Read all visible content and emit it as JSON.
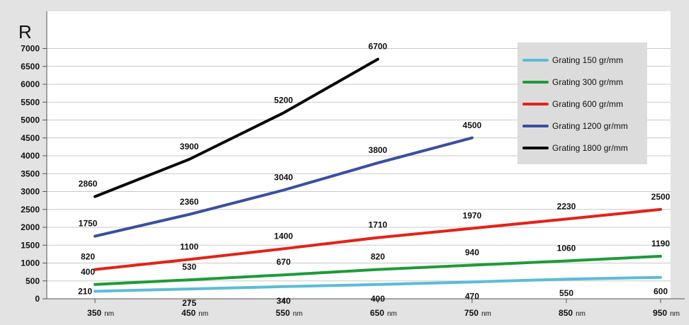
{
  "chart_data": {
    "type": "line",
    "ylabel": "R",
    "ylim": [
      0,
      8000
    ],
    "yticks": [
      0,
      500,
      1000,
      1500,
      2000,
      2500,
      3000,
      3500,
      4000,
      4500,
      5000,
      5500,
      6000,
      6500,
      7000
    ],
    "x": [
      350,
      450,
      550,
      650,
      750,
      850,
      950
    ],
    "xtick_labels": [
      "350",
      "450",
      "550",
      "650",
      "750",
      "850",
      "950"
    ],
    "x_unit": "nm",
    "grid": true,
    "legend_position": "top-right",
    "series": [
      {
        "name": "Grating 150 gr/mm",
        "color": "#5bbcd6",
        "x": [
          350,
          450,
          550,
          650,
          750,
          850,
          950
        ],
        "values": [
          210,
          275,
          340,
          400,
          470,
          550,
          600
        ]
      },
      {
        "name": "Grating 300 gr/mm",
        "color": "#1e9a3a",
        "x": [
          350,
          450,
          550,
          650,
          750,
          850,
          950
        ],
        "values": [
          400,
          530,
          670,
          820,
          940,
          1060,
          1190
        ]
      },
      {
        "name": "Grating 600 gr/mm",
        "color": "#e2231a",
        "x": [
          350,
          450,
          550,
          650,
          750,
          850,
          950
        ],
        "values": [
          820,
          1100,
          1400,
          1710,
          1970,
          2230,
          2500
        ]
      },
      {
        "name": "Grating 1200 gr/mm",
        "color": "#3b4ea0",
        "x": [
          350,
          450,
          550,
          650,
          750
        ],
        "values": [
          1750,
          2360,
          3040,
          3800,
          4500
        ]
      },
      {
        "name": "Grating 1800 gr/mm",
        "color": "#0a0a0a",
        "x": [
          350,
          450,
          550,
          650
        ],
        "values": [
          2860,
          3900,
          5200,
          6700
        ]
      }
    ]
  }
}
